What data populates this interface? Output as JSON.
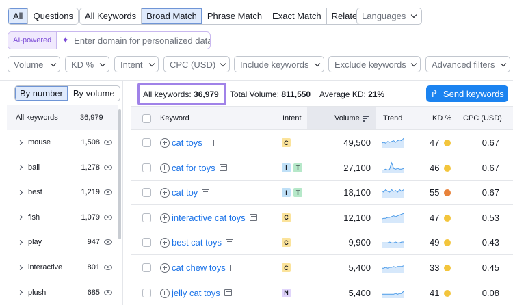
{
  "match_tabs": [
    {
      "label": "All",
      "active": true
    },
    {
      "label": "Questions",
      "active": false
    }
  ],
  "type_tabs": [
    {
      "label": "All Keywords",
      "active": false
    },
    {
      "label": "Broad Match",
      "active": true
    },
    {
      "label": "Phrase Match",
      "active": false
    },
    {
      "label": "Exact Match",
      "active": false
    },
    {
      "label": "Related",
      "active": false
    }
  ],
  "languages_label": "Languages",
  "ai": {
    "tag": "AI-powered",
    "placeholder": "Enter domain for personalized data"
  },
  "filters": [
    "Volume",
    "KD %",
    "Intent",
    "CPC (USD)",
    "Include keywords",
    "Exclude keywords",
    "Advanced filters"
  ],
  "view_toggle": [
    {
      "label": "By number",
      "active": true
    },
    {
      "label": "By volume",
      "active": false
    }
  ],
  "groups_header": {
    "label": "All keywords",
    "count": "36,979"
  },
  "groups": [
    {
      "word": "mouse",
      "count": "1,508"
    },
    {
      "word": "ball",
      "count": "1,278"
    },
    {
      "word": "best",
      "count": "1,219"
    },
    {
      "word": "fish",
      "count": "1,079"
    },
    {
      "word": "play",
      "count": "947"
    },
    {
      "word": "interactive",
      "count": "801"
    },
    {
      "word": "plush",
      "count": "685"
    }
  ],
  "summary": {
    "all_label": "All keywords:",
    "all_value": "36,979",
    "volume_label": "Total Volume:",
    "volume_value": "811,550",
    "kd_label": "Average KD:",
    "kd_value": "21%"
  },
  "send_button": "Send keywords",
  "columns": {
    "keyword": "Keyword",
    "intent": "Intent",
    "volume": "Volume",
    "trend": "Trend",
    "kd": "KD %",
    "cpc": "CPC (USD)"
  },
  "colors": {
    "kd_easy": "#f3c53c",
    "kd_hard": "#e8823a",
    "intent_C": "#fbe39b",
    "intent_I": "#bfe0f7",
    "intent_T": "#b6e8c9",
    "intent_N": "#e0d4fb"
  },
  "rows": [
    {
      "keyword": "cat toys",
      "intents": [
        "C"
      ],
      "volume": "49,500",
      "kd": "47",
      "kd_level": "easy",
      "cpc": "0.67",
      "trend": [
        5,
        6,
        5,
        7,
        6,
        7,
        8,
        6,
        8,
        9,
        8,
        11
      ]
    },
    {
      "keyword": "cat for toys",
      "intents": [
        "I",
        "T"
      ],
      "volume": "27,100",
      "kd": "46",
      "kd_level": "easy",
      "cpc": "0.67",
      "trend": [
        3,
        3,
        4,
        3,
        4,
        12,
        5,
        4,
        5,
        4,
        4,
        5
      ]
    },
    {
      "keyword": "cat toy",
      "intents": [
        "I",
        "T"
      ],
      "volume": "18,100",
      "kd": "55",
      "kd_level": "hard",
      "cpc": "0.67",
      "trend": [
        8,
        6,
        9,
        7,
        6,
        9,
        7,
        8,
        6,
        9,
        7,
        9
      ]
    },
    {
      "keyword": "interactive cat toys",
      "intents": [
        "C"
      ],
      "volume": "12,100",
      "kd": "47",
      "kd_level": "easy",
      "cpc": "0.53",
      "trend": [
        4,
        5,
        5,
        6,
        6,
        7,
        8,
        7,
        8,
        9,
        10,
        11
      ]
    },
    {
      "keyword": "best cat toys",
      "intents": [
        "C"
      ],
      "volume": "9,900",
      "kd": "49",
      "kd_level": "easy",
      "cpc": "0.43",
      "trend": [
        5,
        5,
        5,
        5,
        6,
        5,
        5,
        6,
        5,
        5,
        6,
        6
      ]
    },
    {
      "keyword": "cat chew toys",
      "intents": [
        "C"
      ],
      "volume": "5,400",
      "kd": "33",
      "kd_level": "easy",
      "cpc": "0.45",
      "trend": [
        5,
        5,
        6,
        5,
        6,
        6,
        7,
        6,
        7,
        7,
        7,
        8
      ]
    },
    {
      "keyword": "jelly cat toys",
      "intents": [
        "N"
      ],
      "volume": "5,400",
      "kd": "41",
      "kd_level": "easy",
      "cpc": "0.08",
      "trend": [
        4,
        4,
        4,
        4,
        4,
        4,
        4,
        5,
        4,
        5,
        5,
        8
      ]
    }
  ]
}
